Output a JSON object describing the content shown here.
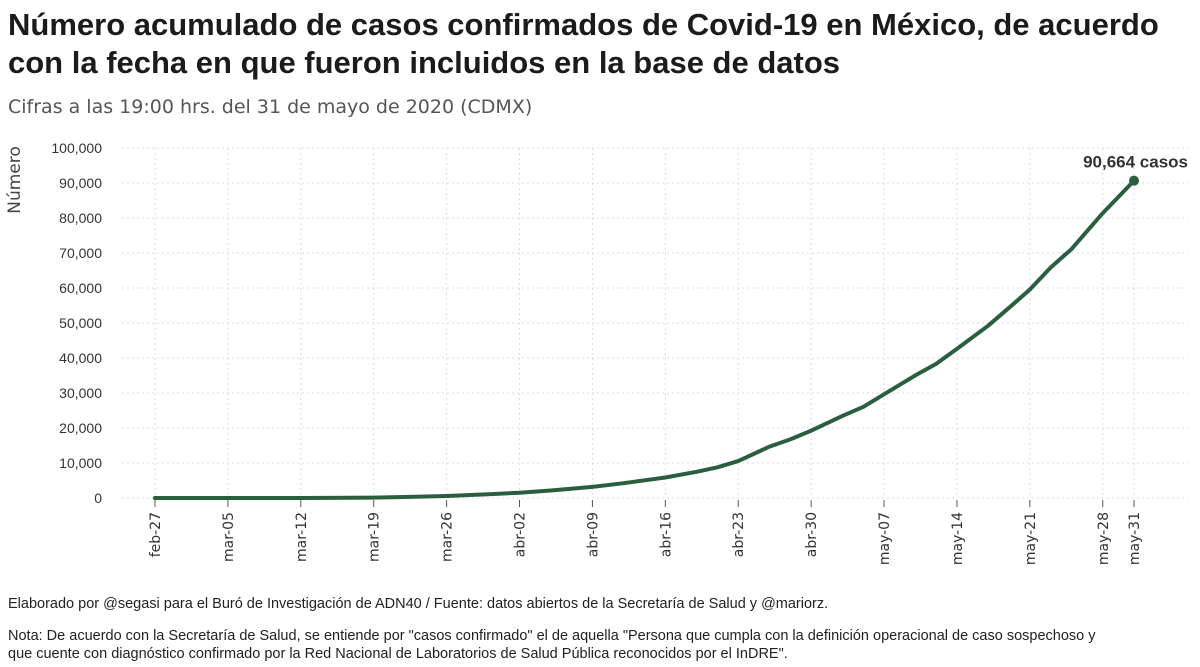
{
  "title": "Número acumulado de casos confirmados de Covid-19 en México, de acuerdo con la fecha en que fueron incluidos en la base de datos",
  "subtitle": "Cifras a las 19:00 hrs. del 31 de mayo de 2020 (CDMX)",
  "footer": {
    "credit": "Elaborado por @segasi para el Buró de Investigación de ADN40 / Fuente: datos abiertos de la Secretaría de Salud y @mariorz.",
    "note": "Nota: De acuerdo con la Secretaría de Salud, se entiende por \"casos confirmado\" el de aquella \"Persona que cumpla con la definición operacional de caso sospechoso y que cuente con diagnóstico confirmado por la Red Nacional de Laboratorios de Salud Pública reconocidos por el InDRE\"."
  },
  "chart_data": {
    "type": "line",
    "ylabel": "Número",
    "xlabel": "",
    "ylim": [
      0,
      100000
    ],
    "yticks": [
      0,
      10000,
      20000,
      30000,
      40000,
      50000,
      60000,
      70000,
      80000,
      90000,
      100000
    ],
    "ytick_labels": [
      "0",
      "10,000",
      "20,000",
      "30,000",
      "40,000",
      "50,000",
      "60,000",
      "70,000",
      "80,000",
      "90,000",
      "100,000"
    ],
    "xticks": [
      "2020-02-27",
      "2020-03-05",
      "2020-03-12",
      "2020-03-19",
      "2020-03-26",
      "2020-04-02",
      "2020-04-09",
      "2020-04-16",
      "2020-04-23",
      "2020-04-30",
      "2020-05-07",
      "2020-05-14",
      "2020-05-21",
      "2020-05-28",
      "2020-05-31"
    ],
    "xtick_labels": [
      "feb-27",
      "mar-05",
      "mar-12",
      "mar-19",
      "mar-26",
      "abr-02",
      "abr-09",
      "abr-16",
      "abr-23",
      "abr-30",
      "may-07",
      "may-14",
      "may-21",
      "may-28",
      "may-31"
    ],
    "grid": true,
    "color": "#2a5e3f",
    "series": [
      {
        "x": [
          "2020-02-27",
          "2020-03-05",
          "2020-03-12",
          "2020-03-19",
          "2020-03-23",
          "2020-03-26",
          "2020-03-30",
          "2020-04-02",
          "2020-04-05",
          "2020-04-09",
          "2020-04-12",
          "2020-04-16",
          "2020-04-19",
          "2020-04-21",
          "2020-04-23",
          "2020-04-26",
          "2020-04-28",
          "2020-04-30",
          "2020-05-03",
          "2020-05-05",
          "2020-05-07",
          "2020-05-10",
          "2020-05-12",
          "2020-05-14",
          "2020-05-17",
          "2020-05-19",
          "2020-05-21",
          "2020-05-23",
          "2020-05-25",
          "2020-05-28",
          "2020-05-31"
        ],
        "y": [
          1,
          5,
          12,
          118,
          367,
          585,
          1094,
          1510,
          2143,
          3181,
          4219,
          5847,
          7497,
          8772,
          10544,
          14677,
          16752,
          19224,
          23471,
          26025,
          29616,
          35022,
          38324,
          42595,
          49219,
          54346,
          59567,
          65856,
          71105,
          81400,
          90664
        ]
      }
    ],
    "annotation": {
      "x": "2020-05-31",
      "y": 90664,
      "text": "90,664 casos"
    }
  }
}
